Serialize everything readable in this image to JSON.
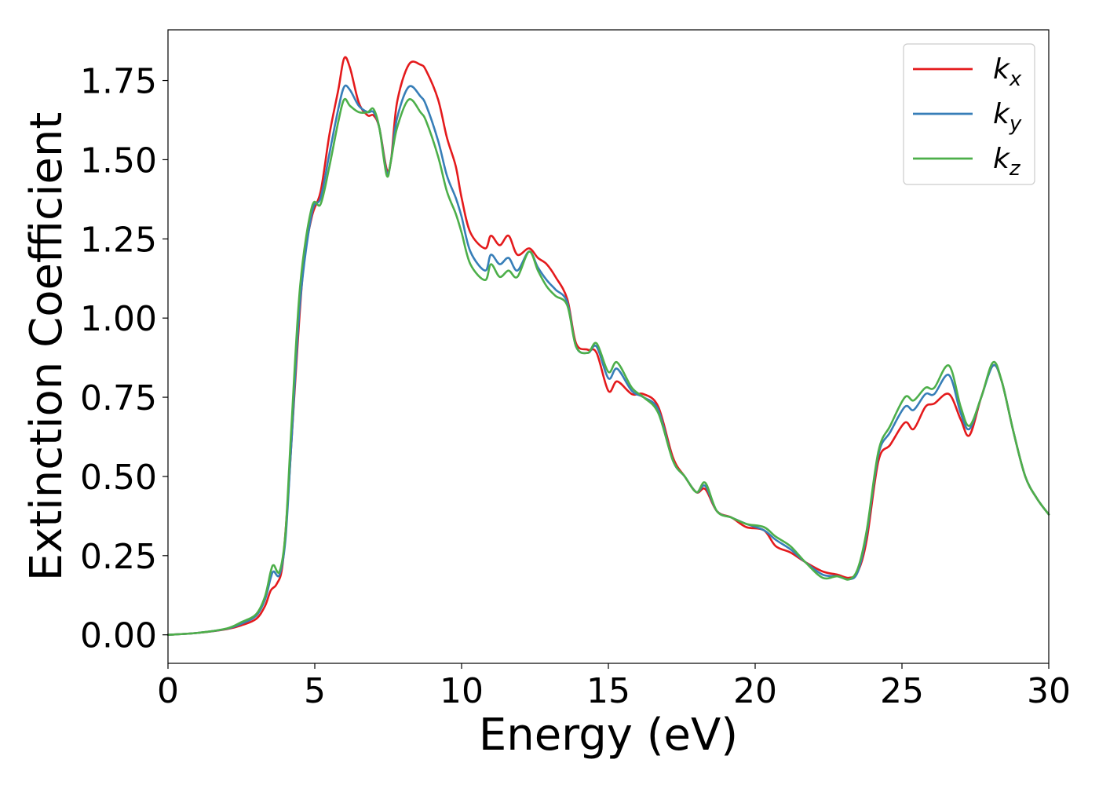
{
  "chart_data": {
    "type": "line",
    "xlabel": "Energy (eV)",
    "ylabel": "Extinction Coefficient",
    "xlim": [
      0,
      30
    ],
    "ylim": [
      -0.09,
      1.91
    ],
    "xticks": [
      0,
      5,
      10,
      15,
      20,
      25,
      30
    ],
    "xtick_labels": [
      "0",
      "5",
      "10",
      "15",
      "20",
      "25",
      "30"
    ],
    "yticks": [
      0.0,
      0.25,
      0.5,
      0.75,
      1.0,
      1.25,
      1.5,
      1.75
    ],
    "ytick_labels": [
      "0.00",
      "0.25",
      "0.50",
      "0.75",
      "1.00",
      "1.25",
      "1.50",
      "1.75"
    ],
    "grid": false,
    "legend_position": "top-right",
    "series": [
      {
        "name": "k",
        "subscript": "x",
        "color": "#e41a1c",
        "points": [
          [
            0,
            0.0
          ],
          [
            1,
            0.006
          ],
          [
            2,
            0.018
          ],
          [
            2.5,
            0.03
          ],
          [
            3,
            0.05
          ],
          [
            3.3,
            0.09
          ],
          [
            3.5,
            0.14
          ],
          [
            3.7,
            0.16
          ],
          [
            3.9,
            0.22
          ],
          [
            4.1,
            0.45
          ],
          [
            4.3,
            0.75
          ],
          [
            4.6,
            1.15
          ],
          [
            4.9,
            1.32
          ],
          [
            5.2,
            1.4
          ],
          [
            5.5,
            1.58
          ],
          [
            5.8,
            1.72
          ],
          [
            6.0,
            1.82
          ],
          [
            6.2,
            1.79
          ],
          [
            6.5,
            1.68
          ],
          [
            6.8,
            1.64
          ],
          [
            7.0,
            1.64
          ],
          [
            7.2,
            1.6
          ],
          [
            7.45,
            1.47
          ],
          [
            7.6,
            1.5
          ],
          [
            7.8,
            1.68
          ],
          [
            8.2,
            1.8
          ],
          [
            8.6,
            1.8
          ],
          [
            8.8,
            1.78
          ],
          [
            9.2,
            1.69
          ],
          [
            9.5,
            1.57
          ],
          [
            9.8,
            1.48
          ],
          [
            10.0,
            1.38
          ],
          [
            10.3,
            1.27
          ],
          [
            10.8,
            1.22
          ],
          [
            11.0,
            1.26
          ],
          [
            11.3,
            1.23
          ],
          [
            11.6,
            1.26
          ],
          [
            11.9,
            1.2
          ],
          [
            12.3,
            1.22
          ],
          [
            12.6,
            1.19
          ],
          [
            12.9,
            1.17
          ],
          [
            13.2,
            1.13
          ],
          [
            13.6,
            1.06
          ],
          [
            13.9,
            0.92
          ],
          [
            14.3,
            0.9
          ],
          [
            14.6,
            0.89
          ],
          [
            15.0,
            0.77
          ],
          [
            15.3,
            0.8
          ],
          [
            15.8,
            0.76
          ],
          [
            16.2,
            0.76
          ],
          [
            16.7,
            0.72
          ],
          [
            17.2,
            0.56
          ],
          [
            17.6,
            0.5
          ],
          [
            18.0,
            0.45
          ],
          [
            18.3,
            0.46
          ],
          [
            18.7,
            0.39
          ],
          [
            19.2,
            0.37
          ],
          [
            19.7,
            0.34
          ],
          [
            20.3,
            0.33
          ],
          [
            20.7,
            0.28
          ],
          [
            21.2,
            0.26
          ],
          [
            21.7,
            0.23
          ],
          [
            22.3,
            0.2
          ],
          [
            22.8,
            0.19
          ],
          [
            23.2,
            0.18
          ],
          [
            23.5,
            0.2
          ],
          [
            23.8,
            0.3
          ],
          [
            24.2,
            0.55
          ],
          [
            24.6,
            0.6
          ],
          [
            25.1,
            0.67
          ],
          [
            25.4,
            0.65
          ],
          [
            25.8,
            0.72
          ],
          [
            26.1,
            0.73
          ],
          [
            26.6,
            0.76
          ],
          [
            27.0,
            0.68
          ],
          [
            27.3,
            0.63
          ],
          [
            27.7,
            0.75
          ],
          [
            28.1,
            0.85
          ],
          [
            28.4,
            0.8
          ],
          [
            28.8,
            0.64
          ],
          [
            29.2,
            0.5
          ],
          [
            29.6,
            0.43
          ],
          [
            30.0,
            0.38
          ]
        ]
      },
      {
        "name": "k",
        "subscript": "y",
        "color": "#377eb8",
        "points": [
          [
            0,
            0.0
          ],
          [
            1,
            0.006
          ],
          [
            2,
            0.019
          ],
          [
            2.5,
            0.035
          ],
          [
            3,
            0.06
          ],
          [
            3.3,
            0.11
          ],
          [
            3.5,
            0.18
          ],
          [
            3.6,
            0.2
          ],
          [
            3.8,
            0.19
          ],
          [
            4.0,
            0.3
          ],
          [
            4.2,
            0.6
          ],
          [
            4.5,
            1.05
          ],
          [
            4.9,
            1.33
          ],
          [
            5.2,
            1.38
          ],
          [
            5.5,
            1.52
          ],
          [
            5.8,
            1.66
          ],
          [
            6.0,
            1.73
          ],
          [
            6.2,
            1.72
          ],
          [
            6.5,
            1.67
          ],
          [
            6.8,
            1.65
          ],
          [
            7.0,
            1.65
          ],
          [
            7.2,
            1.6
          ],
          [
            7.45,
            1.46
          ],
          [
            7.6,
            1.5
          ],
          [
            7.8,
            1.63
          ],
          [
            8.2,
            1.73
          ],
          [
            8.6,
            1.7
          ],
          [
            8.8,
            1.67
          ],
          [
            9.2,
            1.56
          ],
          [
            9.5,
            1.45
          ],
          [
            9.8,
            1.38
          ],
          [
            10.0,
            1.32
          ],
          [
            10.3,
            1.21
          ],
          [
            10.8,
            1.15
          ],
          [
            11.0,
            1.2
          ],
          [
            11.3,
            1.17
          ],
          [
            11.6,
            1.19
          ],
          [
            11.9,
            1.15
          ],
          [
            12.3,
            1.21
          ],
          [
            12.6,
            1.16
          ],
          [
            12.9,
            1.12
          ],
          [
            13.2,
            1.09
          ],
          [
            13.6,
            1.05
          ],
          [
            13.9,
            0.91
          ],
          [
            14.3,
            0.89
          ],
          [
            14.6,
            0.91
          ],
          [
            15.0,
            0.81
          ],
          [
            15.3,
            0.84
          ],
          [
            15.8,
            0.77
          ],
          [
            16.2,
            0.75
          ],
          [
            16.7,
            0.71
          ],
          [
            17.2,
            0.55
          ],
          [
            17.6,
            0.5
          ],
          [
            18.0,
            0.45
          ],
          [
            18.3,
            0.47
          ],
          [
            18.7,
            0.39
          ],
          [
            19.2,
            0.37
          ],
          [
            19.7,
            0.35
          ],
          [
            20.3,
            0.33
          ],
          [
            20.7,
            0.3
          ],
          [
            21.2,
            0.27
          ],
          [
            21.7,
            0.23
          ],
          [
            22.3,
            0.19
          ],
          [
            22.8,
            0.185
          ],
          [
            23.2,
            0.175
          ],
          [
            23.5,
            0.2
          ],
          [
            23.8,
            0.32
          ],
          [
            24.2,
            0.57
          ],
          [
            24.6,
            0.64
          ],
          [
            25.1,
            0.72
          ],
          [
            25.4,
            0.71
          ],
          [
            25.8,
            0.76
          ],
          [
            26.1,
            0.76
          ],
          [
            26.6,
            0.82
          ],
          [
            27.0,
            0.7
          ],
          [
            27.3,
            0.65
          ],
          [
            27.7,
            0.75
          ],
          [
            28.1,
            0.85
          ],
          [
            28.4,
            0.8
          ],
          [
            28.8,
            0.64
          ],
          [
            29.2,
            0.5
          ],
          [
            29.6,
            0.43
          ],
          [
            30.0,
            0.38
          ]
        ]
      },
      {
        "name": "k",
        "subscript": "z",
        "color": "#4daf4a",
        "points": [
          [
            0,
            0.0
          ],
          [
            1,
            0.006
          ],
          [
            2,
            0.02
          ],
          [
            2.5,
            0.04
          ],
          [
            3,
            0.065
          ],
          [
            3.3,
            0.12
          ],
          [
            3.5,
            0.2
          ],
          [
            3.6,
            0.22
          ],
          [
            3.8,
            0.2
          ],
          [
            4.0,
            0.32
          ],
          [
            4.2,
            0.65
          ],
          [
            4.5,
            1.1
          ],
          [
            4.9,
            1.35
          ],
          [
            5.2,
            1.36
          ],
          [
            5.5,
            1.48
          ],
          [
            5.8,
            1.62
          ],
          [
            6.0,
            1.69
          ],
          [
            6.2,
            1.67
          ],
          [
            6.5,
            1.65
          ],
          [
            6.8,
            1.65
          ],
          [
            7.0,
            1.66
          ],
          [
            7.2,
            1.6
          ],
          [
            7.45,
            1.45
          ],
          [
            7.6,
            1.5
          ],
          [
            7.8,
            1.6
          ],
          [
            8.2,
            1.69
          ],
          [
            8.6,
            1.65
          ],
          [
            8.8,
            1.62
          ],
          [
            9.2,
            1.51
          ],
          [
            9.5,
            1.4
          ],
          [
            9.8,
            1.33
          ],
          [
            10.0,
            1.27
          ],
          [
            10.3,
            1.17
          ],
          [
            10.8,
            1.12
          ],
          [
            11.0,
            1.17
          ],
          [
            11.3,
            1.13
          ],
          [
            11.6,
            1.15
          ],
          [
            11.9,
            1.13
          ],
          [
            12.3,
            1.21
          ],
          [
            12.6,
            1.15
          ],
          [
            12.9,
            1.1
          ],
          [
            13.2,
            1.07
          ],
          [
            13.6,
            1.04
          ],
          [
            13.9,
            0.91
          ],
          [
            14.3,
            0.89
          ],
          [
            14.6,
            0.92
          ],
          [
            15.0,
            0.83
          ],
          [
            15.3,
            0.86
          ],
          [
            15.8,
            0.78
          ],
          [
            16.2,
            0.75
          ],
          [
            16.7,
            0.7
          ],
          [
            17.2,
            0.55
          ],
          [
            17.6,
            0.5
          ],
          [
            18.0,
            0.45
          ],
          [
            18.3,
            0.48
          ],
          [
            18.7,
            0.39
          ],
          [
            19.2,
            0.37
          ],
          [
            19.7,
            0.35
          ],
          [
            20.3,
            0.34
          ],
          [
            20.7,
            0.31
          ],
          [
            21.2,
            0.28
          ],
          [
            21.7,
            0.23
          ],
          [
            22.3,
            0.18
          ],
          [
            22.8,
            0.185
          ],
          [
            23.2,
            0.175
          ],
          [
            23.5,
            0.21
          ],
          [
            23.8,
            0.33
          ],
          [
            24.2,
            0.58
          ],
          [
            24.6,
            0.66
          ],
          [
            25.1,
            0.75
          ],
          [
            25.4,
            0.74
          ],
          [
            25.8,
            0.78
          ],
          [
            26.1,
            0.78
          ],
          [
            26.6,
            0.85
          ],
          [
            27.0,
            0.72
          ],
          [
            27.3,
            0.66
          ],
          [
            27.7,
            0.75
          ],
          [
            28.1,
            0.86
          ],
          [
            28.4,
            0.8
          ],
          [
            28.8,
            0.64
          ],
          [
            29.2,
            0.5
          ],
          [
            29.6,
            0.43
          ],
          [
            30.0,
            0.38
          ]
        ]
      }
    ]
  }
}
